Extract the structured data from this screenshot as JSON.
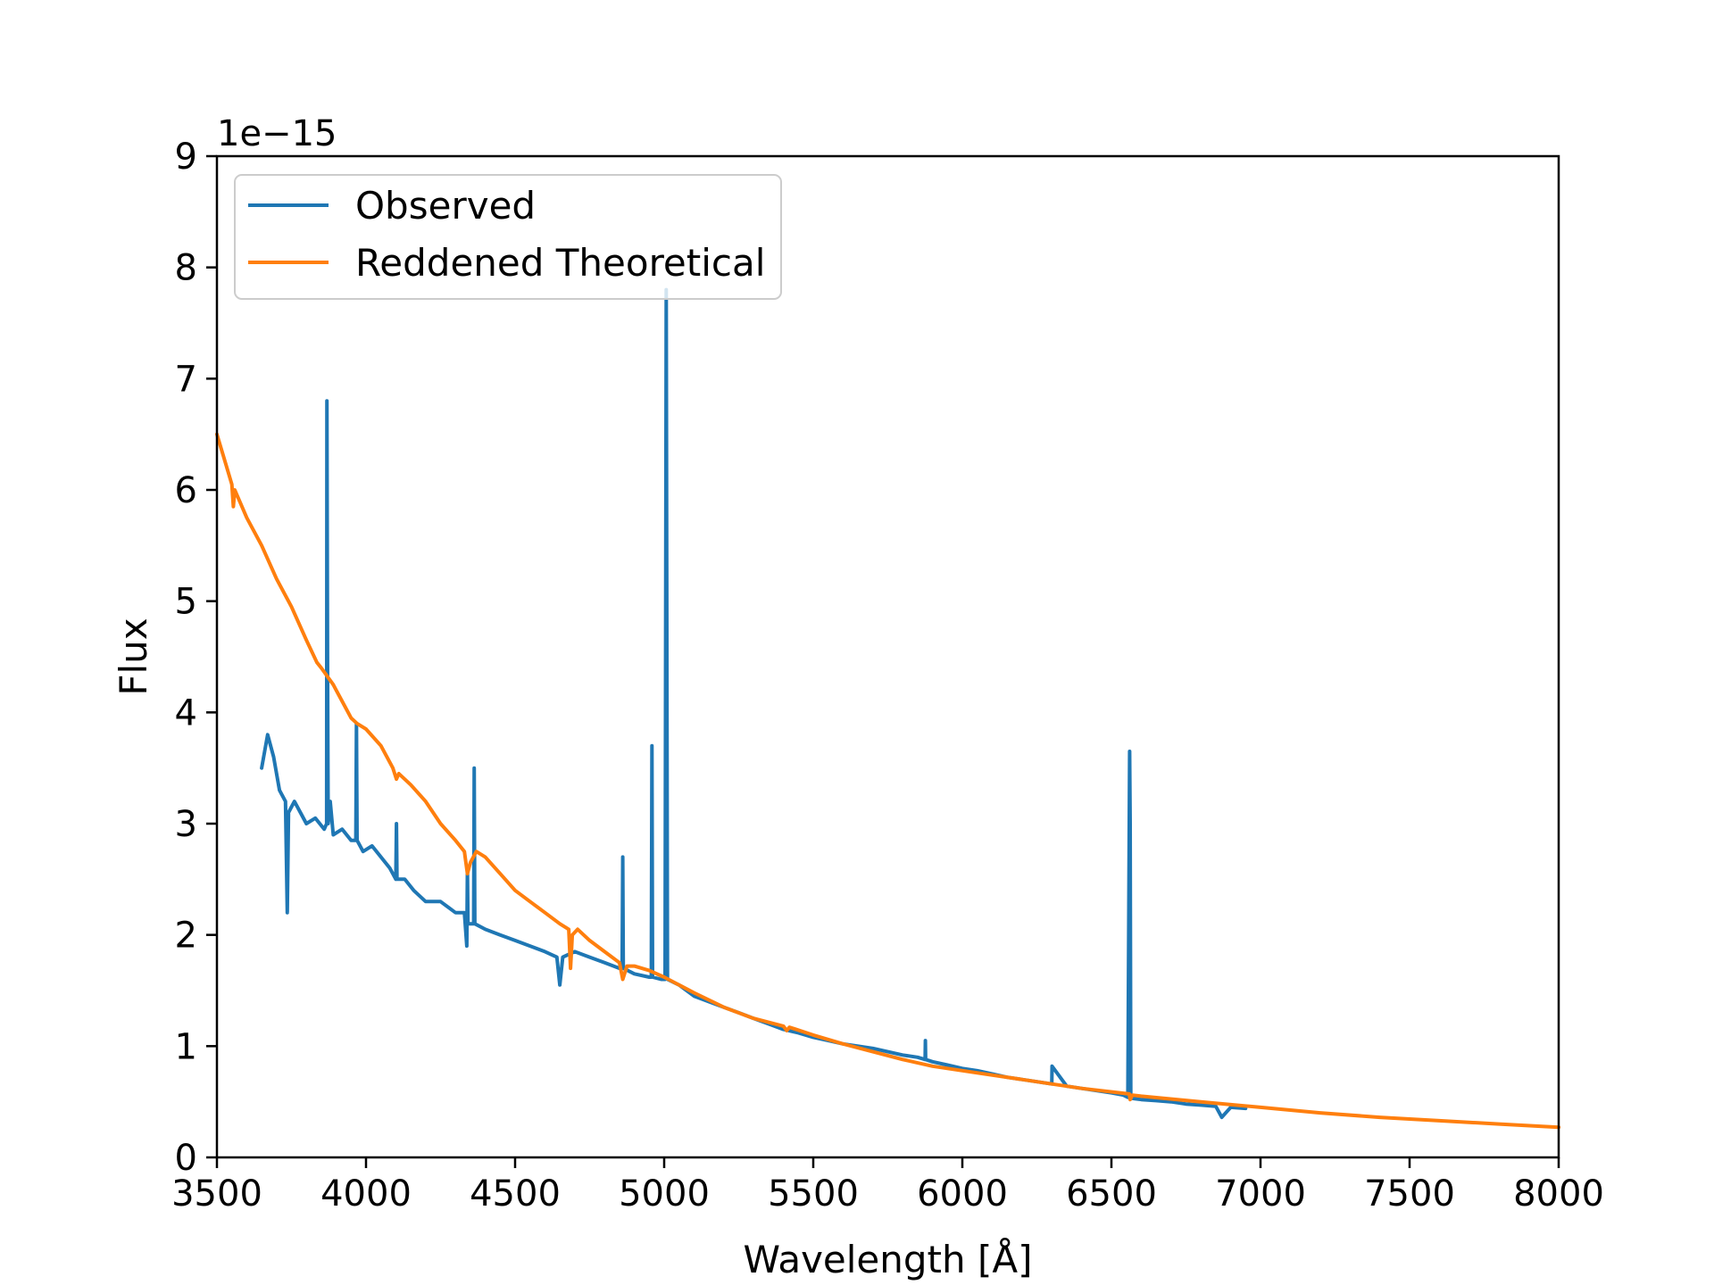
{
  "chart_data": {
    "type": "line",
    "title": "",
    "xlabel": "Wavelength [Å]",
    "ylabel": "Flux",
    "y_offset_label": "1e−15",
    "xlim": [
      3500,
      8000
    ],
    "ylim": [
      0,
      9
    ],
    "y_scale_factor": 1e-15,
    "xticks": [
      3500,
      4000,
      4500,
      5000,
      5500,
      6000,
      6500,
      7000,
      7500,
      8000
    ],
    "yticks": [
      0,
      1,
      2,
      3,
      4,
      5,
      6,
      7,
      8,
      9
    ],
    "xtick_labels": [
      "3500",
      "4000",
      "4500",
      "5000",
      "5500",
      "6000",
      "6500",
      "7000",
      "7500",
      "8000"
    ],
    "ytick_labels": [
      "0",
      "1",
      "2",
      "3",
      "4",
      "5",
      "6",
      "7",
      "8",
      "9"
    ],
    "grid": false,
    "legend_position": "top-left",
    "series": [
      {
        "name": "Observed",
        "color": "#1f77b4",
        "x": [
          3650,
          3670,
          3690,
          3710,
          3730,
          3736,
          3740,
          3760,
          3780,
          3800,
          3830,
          3860,
          3868,
          3869,
          3871,
          3873,
          3880,
          3890,
          3920,
          3950,
          3966,
          3968,
          3970,
          3990,
          4020,
          4050,
          4080,
          4100,
          4102,
          4104,
          4130,
          4160,
          4200,
          4250,
          4300,
          4330,
          4338,
          4340,
          4342,
          4350,
          4361,
          4363,
          4365,
          4400,
          4450,
          4500,
          4550,
          4600,
          4640,
          4650,
          4660,
          4700,
          4750,
          4800,
          4850,
          4859,
          4861,
          4863,
          4900,
          4950,
          4957,
          4959,
          4961,
          4990,
          5003,
          5007,
          5011,
          5050,
          5100,
          5150,
          5200,
          5250,
          5300,
          5350,
          5400,
          5450,
          5500,
          5550,
          5600,
          5650,
          5700,
          5750,
          5800,
          5850,
          5875,
          5876,
          5877,
          5900,
          5950,
          6000,
          6050,
          6100,
          6150,
          6200,
          6250,
          6300,
          6301,
          6350,
          6400,
          6450,
          6500,
          6540,
          6555,
          6561,
          6563,
          6565,
          6571,
          6600,
          6650,
          6700,
          6750,
          6800,
          6850,
          6870,
          6900,
          6950
        ],
        "values": [
          3.5,
          3.8,
          3.6,
          3.3,
          3.2,
          2.2,
          3.1,
          3.2,
          3.1,
          3.0,
          3.05,
          2.95,
          3.0,
          6.8,
          4.5,
          3.0,
          3.2,
          2.9,
          2.95,
          2.85,
          2.85,
          3.9,
          2.85,
          2.75,
          2.8,
          2.7,
          2.6,
          2.5,
          3.0,
          2.5,
          2.5,
          2.4,
          2.3,
          2.3,
          2.2,
          2.2,
          1.9,
          2.6,
          2.1,
          2.1,
          2.1,
          3.5,
          2.1,
          2.05,
          2.0,
          1.95,
          1.9,
          1.85,
          1.8,
          1.55,
          1.8,
          1.85,
          1.8,
          1.75,
          1.7,
          1.7,
          2.7,
          1.7,
          1.65,
          1.62,
          1.62,
          3.7,
          1.62,
          1.6,
          1.6,
          7.8,
          1.6,
          1.55,
          1.45,
          1.4,
          1.35,
          1.3,
          1.25,
          1.2,
          1.15,
          1.12,
          1.08,
          1.05,
          1.02,
          1.0,
          0.98,
          0.95,
          0.92,
          0.9,
          0.88,
          1.05,
          0.88,
          0.86,
          0.83,
          0.8,
          0.78,
          0.75,
          0.72,
          0.7,
          0.68,
          0.66,
          0.82,
          0.64,
          0.62,
          0.6,
          0.58,
          0.56,
          0.54,
          3.65,
          3.0,
          0.55,
          0.53,
          0.52,
          0.51,
          0.5,
          0.48,
          0.47,
          0.46,
          0.36,
          0.45,
          0.44
        ]
      },
      {
        "name": "Reddened Theoretical",
        "color": "#ff7f0e",
        "x": [
          3500,
          3550,
          3555,
          3560,
          3600,
          3650,
          3700,
          3750,
          3800,
          3835,
          3850,
          3890,
          3900,
          3950,
          3970,
          4000,
          4050,
          4090,
          4102,
          4110,
          4150,
          4200,
          4250,
          4300,
          4330,
          4340,
          4350,
          4370,
          4400,
          4450,
          4500,
          4550,
          4600,
          4650,
          4680,
          4686,
          4692,
          4710,
          4750,
          4800,
          4850,
          4861,
          4875,
          4900,
          4950,
          5000,
          5100,
          5200,
          5300,
          5400,
          5411,
          5420,
          5500,
          5600,
          5700,
          5800,
          5900,
          6000,
          6200,
          6400,
          6560,
          6563,
          6570,
          6600,
          6800,
          7000,
          7200,
          7400,
          7600,
          7800,
          8000
        ],
        "values": [
          6.5,
          6.05,
          5.85,
          6.0,
          5.75,
          5.5,
          5.2,
          4.95,
          4.65,
          4.45,
          4.4,
          4.25,
          4.2,
          3.95,
          3.9,
          3.85,
          3.7,
          3.5,
          3.4,
          3.45,
          3.35,
          3.2,
          3.0,
          2.85,
          2.75,
          2.55,
          2.65,
          2.75,
          2.7,
          2.55,
          2.4,
          2.3,
          2.2,
          2.1,
          2.05,
          1.7,
          2.0,
          2.05,
          1.95,
          1.85,
          1.75,
          1.6,
          1.72,
          1.72,
          1.68,
          1.62,
          1.48,
          1.35,
          1.25,
          1.18,
          1.14,
          1.17,
          1.1,
          1.02,
          0.95,
          0.88,
          0.82,
          0.78,
          0.7,
          0.62,
          0.57,
          0.52,
          0.56,
          0.55,
          0.5,
          0.45,
          0.4,
          0.36,
          0.33,
          0.3,
          0.27
        ]
      }
    ]
  }
}
